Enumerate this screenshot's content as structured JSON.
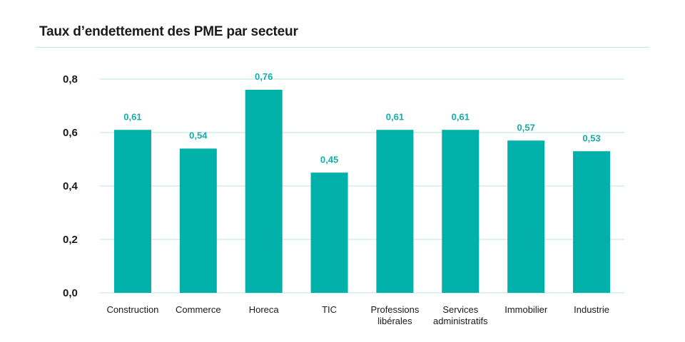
{
  "colors": {
    "bar": "#00b0a9",
    "grid": "#b8e4e0",
    "value_label": "#19aba5",
    "title_rule": "#bfe6e2"
  },
  "chart_data": {
    "type": "bar",
    "title": "Taux d’endettement des PME par secteur",
    "xlabel": "",
    "ylabel": "",
    "ylim": [
      0,
      0.8
    ],
    "yticks": [
      {
        "value": 0.0,
        "label": "0,0"
      },
      {
        "value": 0.2,
        "label": "0,2"
      },
      {
        "value": 0.4,
        "label": "0,4"
      },
      {
        "value": 0.6,
        "label": "0,6"
      },
      {
        "value": 0.8,
        "label": "0,8"
      }
    ],
    "grid": true,
    "categories": [
      {
        "lines": [
          "Construction"
        ]
      },
      {
        "lines": [
          "Commerce"
        ]
      },
      {
        "lines": [
          "Horeca"
        ]
      },
      {
        "lines": [
          "TIC"
        ]
      },
      {
        "lines": [
          "Professions",
          "libérales"
        ]
      },
      {
        "lines": [
          "Services",
          "administratifs"
        ]
      },
      {
        "lines": [
          "Immobilier"
        ]
      },
      {
        "lines": [
          "Industrie"
        ]
      }
    ],
    "values": [
      0.61,
      0.54,
      0.76,
      0.45,
      0.61,
      0.61,
      0.57,
      0.53
    ],
    "value_labels": [
      "0,61",
      "0,54",
      "0,76",
      "0,45",
      "0,61",
      "0,61",
      "0,57",
      "0,53"
    ]
  }
}
